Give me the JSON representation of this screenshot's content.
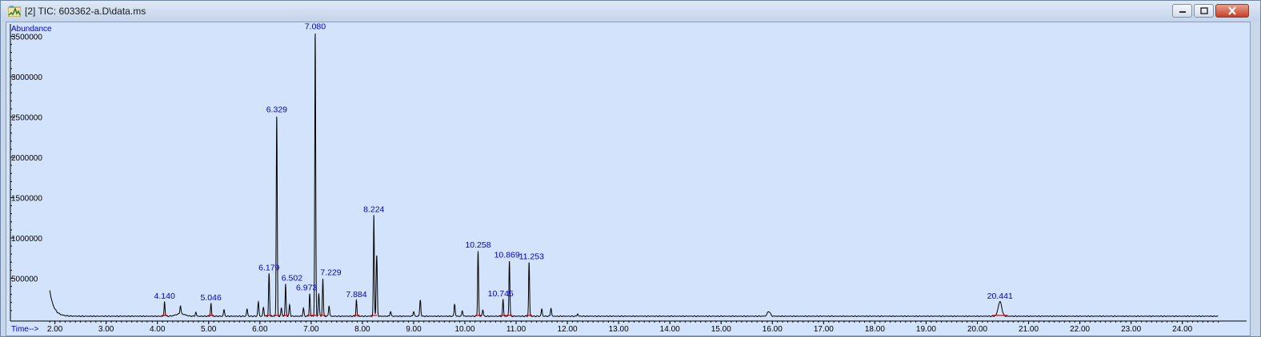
{
  "window": {
    "title": "[2] TIC: 603362-a.D\\data.ms",
    "icons": [
      "app-icon",
      "minimize-icon",
      "maximize-icon",
      "close-icon"
    ]
  },
  "colors": {
    "plot_background": "#d3e3fb",
    "trace": "#000000",
    "label_blue": "#0000cc",
    "baseline_red": "#dd0000"
  },
  "chart_data": {
    "type": "line",
    "title": "",
    "ylabel": "Abundance",
    "xlabel": "Time-->",
    "xlim": [
      1.9,
      25.0
    ],
    "ylim": [
      0,
      3600000
    ],
    "x_ticks": [
      "2.00",
      "3.00",
      "4.00",
      "5.00",
      "6.00",
      "7.00",
      "8.00",
      "9.00",
      "10.00",
      "11.00",
      "12.00",
      "13.00",
      "14.00",
      "15.00",
      "16.00",
      "17.00",
      "18.00",
      "19.00",
      "20.00",
      "21.00",
      "22.00",
      "23.00",
      "24.00"
    ],
    "y_ticks": [
      "500000",
      "1000000",
      "1500000",
      "2000000",
      "2500000",
      "3000000",
      "3500000"
    ],
    "grid": false,
    "baseline": 30000,
    "initial_peak": {
      "x": 1.9,
      "y": 350000
    },
    "labeled_peaks": [
      {
        "label": "4.140",
        "x": 4.14,
        "y": 210000
      },
      {
        "label": "5.046",
        "x": 5.046,
        "y": 190000
      },
      {
        "label": "6.179",
        "x": 6.179,
        "y": 560000
      },
      {
        "label": "6.329",
        "x": 6.329,
        "y": 2520000
      },
      {
        "label": "6.502",
        "x": 6.502,
        "y": 430000
      },
      {
        "label": "6.973",
        "x": 6.973,
        "y": 310000
      },
      {
        "label": "7.080",
        "x": 7.08,
        "y": 3550000
      },
      {
        "label": "7.229",
        "x": 7.229,
        "y": 500000
      },
      {
        "label": "7.884",
        "x": 7.884,
        "y": 230000
      },
      {
        "label": "8.224",
        "x": 8.224,
        "y": 1280000
      },
      {
        "label": "10.258",
        "x": 10.258,
        "y": 840000
      },
      {
        "label": "10.745",
        "x": 10.745,
        "y": 240000
      },
      {
        "label": "10.869",
        "x": 10.869,
        "y": 720000
      },
      {
        "label": "11.253",
        "x": 11.253,
        "y": 700000
      },
      {
        "label": "20.441",
        "x": 20.441,
        "y": 210000
      }
    ],
    "minor_peaks": [
      {
        "x": 4.45,
        "y": 130000
      },
      {
        "x": 4.75,
        "y": 80000
      },
      {
        "x": 5.3,
        "y": 110000
      },
      {
        "x": 5.75,
        "y": 120000
      },
      {
        "x": 5.97,
        "y": 210000
      },
      {
        "x": 6.07,
        "y": 140000
      },
      {
        "x": 6.42,
        "y": 130000
      },
      {
        "x": 6.58,
        "y": 170000
      },
      {
        "x": 6.85,
        "y": 130000
      },
      {
        "x": 7.15,
        "y": 310000
      },
      {
        "x": 7.35,
        "y": 160000
      },
      {
        "x": 8.28,
        "y": 780000
      },
      {
        "x": 8.55,
        "y": 90000
      },
      {
        "x": 9.0,
        "y": 90000
      },
      {
        "x": 9.13,
        "y": 230000
      },
      {
        "x": 9.8,
        "y": 180000
      },
      {
        "x": 9.95,
        "y": 100000
      },
      {
        "x": 10.35,
        "y": 110000
      },
      {
        "x": 11.5,
        "y": 120000
      },
      {
        "x": 11.68,
        "y": 130000
      },
      {
        "x": 12.2,
        "y": 60000
      },
      {
        "x": 15.93,
        "y": 90000
      }
    ]
  }
}
